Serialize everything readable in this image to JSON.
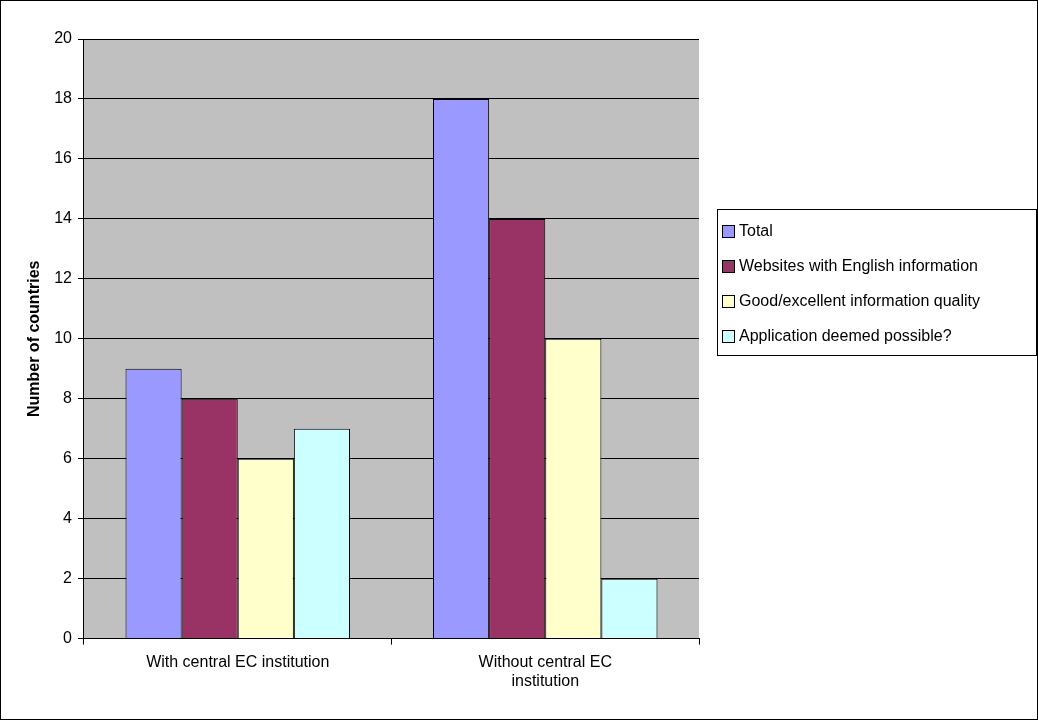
{
  "chart_data": {
    "type": "bar",
    "ylabel": "Number of countries",
    "categories": [
      "With central EC institution",
      "Without central EC institution"
    ],
    "series": [
      {
        "name": "Total",
        "color": "#9999ff",
        "values": [
          9,
          18
        ]
      },
      {
        "name": "Websites with English information",
        "color": "#993366",
        "values": [
          8,
          14
        ]
      },
      {
        "name": "Good/excellent information quality",
        "color": "#ffffcc",
        "values": [
          6,
          10
        ]
      },
      {
        "name": "Application deemed possible?",
        "color": "#ccffff",
        "values": [
          7,
          2
        ]
      }
    ],
    "ylim": [
      0,
      20
    ],
    "yticks": [
      0,
      2,
      4,
      6,
      8,
      10,
      12,
      14,
      16,
      18,
      20
    ],
    "grid": "y",
    "legend": "right"
  }
}
